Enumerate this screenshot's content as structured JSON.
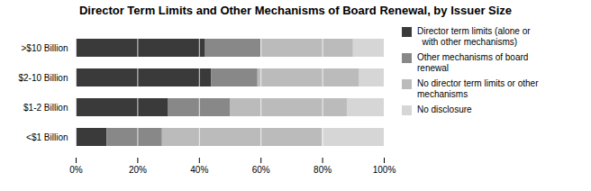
{
  "chart_data": {
    "type": "bar",
    "orientation": "horizontal",
    "stacked": true,
    "title": "Director Term Limits and Other Mechanisms of Board Renewal, by Issuer Size",
    "categories": [
      ">$10 Billion",
      "$2-10 Billion",
      "$1-2 Billion",
      "<$1 Billion"
    ],
    "series": [
      {
        "name": "Director term limits (alone or\n  with other mechanisms)",
        "values": [
          42,
          44,
          30,
          10
        ],
        "color": "#3a3a3a"
      },
      {
        "name": "Other mechanisms of board\nrenewal",
        "values": [
          18,
          15,
          20,
          18
        ],
        "color": "#888888"
      },
      {
        "name": "No director term limits or other\nmechanisms",
        "values": [
          30,
          33,
          38,
          52
        ],
        "color": "#bbbbbb"
      },
      {
        "name": "No disclosure",
        "values": [
          10,
          8,
          12,
          20
        ],
        "color": "#d6d6d6"
      }
    ],
    "xlim": [
      0,
      100
    ],
    "xticks": [
      {
        "value": 0,
        "label": "0%"
      },
      {
        "value": 20,
        "label": "20%"
      },
      {
        "value": 40,
        "label": "40%"
      },
      {
        "value": 60,
        "label": "60%"
      },
      {
        "value": 80,
        "label": "80%"
      },
      {
        "value": 100,
        "label": "100%"
      }
    ],
    "grid": true,
    "legend": "right"
  }
}
